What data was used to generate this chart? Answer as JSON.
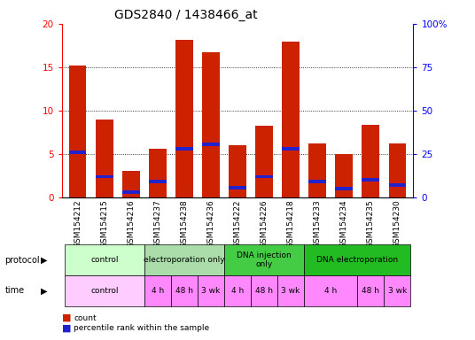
{
  "title": "GDS2840 / 1438466_at",
  "samples": [
    "GSM154212",
    "GSM154215",
    "GSM154216",
    "GSM154237",
    "GSM154238",
    "GSM154236",
    "GSM154222",
    "GSM154226",
    "GSM154218",
    "GSM154233",
    "GSM154234",
    "GSM154235",
    "GSM154230"
  ],
  "count_values": [
    15.2,
    9.0,
    3.0,
    5.6,
    18.1,
    16.7,
    6.0,
    8.2,
    17.9,
    6.2,
    5.0,
    8.3,
    6.2
  ],
  "percentile_values": [
    5.2,
    2.4,
    0.6,
    1.8,
    5.6,
    6.1,
    1.1,
    2.4,
    5.6,
    1.8,
    1.0,
    2.0,
    1.4
  ],
  "ylim_left": [
    0,
    20
  ],
  "ylim_right": [
    0,
    100
  ],
  "yticks_left": [
    0,
    5,
    10,
    15,
    20
  ],
  "yticks_right": [
    0,
    25,
    50,
    75,
    100
  ],
  "ytick_labels_left": [
    "0",
    "5",
    "10",
    "15",
    "20"
  ],
  "ytick_labels_right": [
    "0",
    "25",
    "50",
    "75",
    "100%"
  ],
  "bar_color": "#CC2200",
  "blue_color": "#2222CC",
  "background_color": "#FFFFFF",
  "grid_color": "#000000",
  "prot_defs": [
    {
      "label": "control",
      "start": 0,
      "end": 3,
      "color": "#CCFFCC"
    },
    {
      "label": "electroporation only",
      "start": 3,
      "end": 6,
      "color": "#AADDAA"
    },
    {
      "label": "DNA injection\nonly",
      "start": 6,
      "end": 9,
      "color": "#44CC44"
    },
    {
      "label": "DNA electroporation",
      "start": 9,
      "end": 13,
      "color": "#22BB22"
    }
  ],
  "time_defs": [
    {
      "label": "control",
      "start": 0,
      "end": 3,
      "color": "#FFCCFF"
    },
    {
      "label": "4 h",
      "start": 3,
      "end": 4,
      "color": "#FF88FF"
    },
    {
      "label": "48 h",
      "start": 4,
      "end": 5,
      "color": "#FF88FF"
    },
    {
      "label": "3 wk",
      "start": 5,
      "end": 6,
      "color": "#FF88FF"
    },
    {
      "label": "4 h",
      "start": 6,
      "end": 7,
      "color": "#FF88FF"
    },
    {
      "label": "48 h",
      "start": 7,
      "end": 8,
      "color": "#FF88FF"
    },
    {
      "label": "3 wk",
      "start": 8,
      "end": 9,
      "color": "#FF88FF"
    },
    {
      "label": "4 h",
      "start": 9,
      "end": 11,
      "color": "#FF88FF"
    },
    {
      "label": "48 h",
      "start": 11,
      "end": 12,
      "color": "#FF88FF"
    },
    {
      "label": "3 wk",
      "start": 12,
      "end": 13,
      "color": "#FF88FF"
    }
  ],
  "legend_items": [
    {
      "label": "count",
      "color": "#CC2200"
    },
    {
      "label": "percentile rank within the sample",
      "color": "#2222CC"
    }
  ],
  "title_fontsize": 10,
  "tick_fontsize": 7.5
}
